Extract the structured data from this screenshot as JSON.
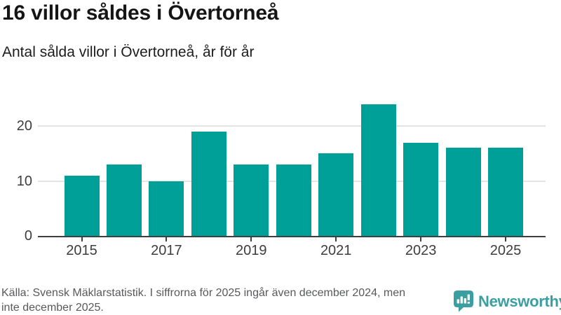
{
  "chart_data": {
    "type": "bar",
    "title": "16 villor såldes i Övertorneå",
    "subtitle": "Antal sålda villor i Övertorneå, år för år",
    "categories": [
      "2015",
      "2016",
      "2017",
      "2018",
      "2019",
      "2020",
      "2021",
      "2022",
      "2023",
      "2024",
      "2025"
    ],
    "values": [
      11,
      13,
      10,
      19,
      13,
      13,
      15,
      24,
      17,
      16,
      16
    ],
    "xlabel": "",
    "ylabel": "",
    "ylim": [
      0,
      25
    ],
    "yticks": [
      0,
      10,
      20
    ],
    "xtick_labels": [
      "2015",
      "2017",
      "2019",
      "2021",
      "2023",
      "2025"
    ],
    "grid": "horizontal-only",
    "legend": "none",
    "bar_color": "#00a099"
  },
  "footer": {
    "source_lines": [
      "Källa: Svensk Mäklarstatistik. I siffrorna för 2025 ingår även december 2024, men",
      "inte december 2025."
    ]
  },
  "branding": {
    "logo_text": "Newsworthy",
    "logo_color": "#3b9fa1",
    "logo_icon": "newsworthy-speech-bubble-bar-chart-icon"
  },
  "colors": {
    "bar": "#00a099",
    "axis_line": "#3f3f3f",
    "gridline": "#e4e4e4",
    "title_text": "#151515",
    "axis_text": "#3d3d3d",
    "source_text": "#58595b"
  }
}
